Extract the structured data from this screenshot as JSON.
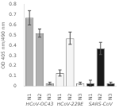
{
  "chart_data": {
    "type": "bar",
    "categories": [
      "N1",
      "N2",
      "N3",
      "N1",
      "N2",
      "N3",
      "N1",
      "N2",
      "N3"
    ],
    "values": [
      0.67,
      0.52,
      0.03,
      0.13,
      0.47,
      0.03,
      0.03,
      0.37,
      0.03
    ],
    "errors": [
      0.07,
      0.04,
      0.01,
      0.03,
      0.06,
      0.01,
      0.03,
      0.06,
      0.01
    ],
    "colors": [
      "#b0b0b0",
      "#b0b0b0",
      "#b0b0b0",
      "#f5f5f5",
      "#f5f5f5",
      "#f5f5f5",
      "#1a1a1a",
      "#1a1a1a",
      "#1a1a1a"
    ],
    "annotations": [
      "HCoV-OC43",
      "HCoV-229E",
      "SARS-CoV"
    ],
    "ylabel": "OD 405 nm/490 nm",
    "ylim": [
      0,
      0.8
    ],
    "yticks": [
      0,
      0.1,
      0.2,
      0.3,
      0.4,
      0.5,
      0.6,
      0.7,
      0.8
    ],
    "grid": false
  }
}
